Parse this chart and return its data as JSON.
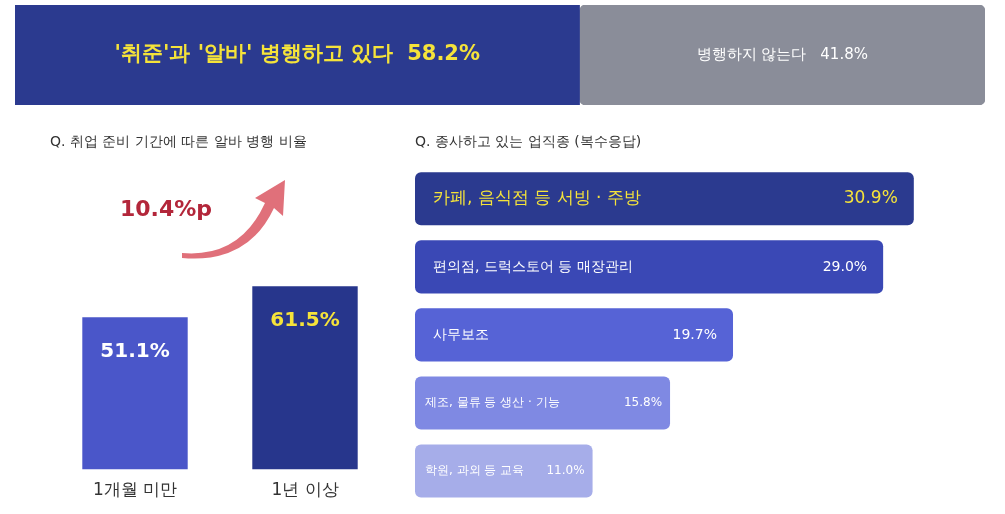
{
  "chart_data": [
    {
      "type": "bar",
      "orientation": "horizontal",
      "stacked": true,
      "categories": [
        null
      ],
      "series": [
        {
          "name": "'취준'과 '알바' 병행하고 있다",
          "color": "#2b3a8f",
          "values": [
            58.2
          ],
          "value_labels": [
            "58.2%"
          ]
        },
        {
          "name": "병행하지 않는다",
          "color": "#8a8d99",
          "values": [
            41.8
          ],
          "value_labels": [
            "41.8%"
          ]
        }
      ]
    },
    {
      "type": "bar",
      "title": "Q. 취업 준비 기간에 따른 알바 병행 비율",
      "categories": [
        "1개월 미만",
        "1년 이상"
      ],
      "values": [
        51.1,
        61.5
      ],
      "colors": [
        "#4a56c9",
        "#27368c"
      ],
      "value_labels": [
        "51.1%",
        "61.5%"
      ],
      "annotations": [
        "10.4%p"
      ]
    },
    {
      "type": "bar",
      "orientation": "horizontal",
      "title": "Q. 종사하고 있는 업직종 (복수응답)",
      "categories": [
        "카페, 음식점 등 서빙 · 주방",
        "편의점, 드럭스토어 등 매장관리",
        "사무보조",
        "제조, 물류 등 생산 · 기능",
        "학원, 과외 등 교육"
      ],
      "values": [
        30.9,
        29.0,
        19.7,
        15.8,
        11.0
      ],
      "colors": [
        "#2b3a8f",
        "#3a48b5",
        "#5663d6",
        "#7f89e3",
        "#a6ade9"
      ],
      "value_labels": [
        "30.9%",
        "29.0%",
        "19.7%",
        "15.8%",
        "11.0%"
      ]
    }
  ]
}
